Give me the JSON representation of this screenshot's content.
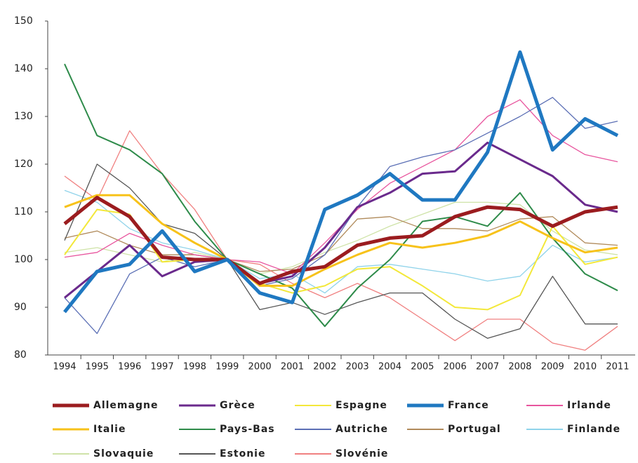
{
  "chart_data": {
    "type": "line",
    "categories": [
      "1994",
      "1995",
      "1996",
      "1997",
      "1998",
      "1999",
      "2000",
      "2001",
      "2002",
      "2003",
      "2004",
      "2005",
      "2006",
      "2007",
      "2008",
      "2009",
      "2010",
      "2011"
    ],
    "ylim": [
      80,
      150
    ],
    "yticks": [
      80,
      90,
      100,
      110,
      120,
      130,
      140,
      150
    ],
    "series": [
      {
        "name": "Allemagne",
        "color": "#9b1c1f",
        "values": [
          107.5,
          113,
          109,
          100.5,
          100,
          100,
          95,
          97.5,
          98.5,
          103,
          104.5,
          105,
          109,
          111,
          110.5,
          107,
          110,
          111
        ]
      },
      {
        "name": "Grèce",
        "color": "#6a2a8c",
        "values": [
          92,
          97.5,
          103,
          96.5,
          99.5,
          100,
          95,
          96.5,
          102.5,
          111,
          114,
          118,
          118.5,
          124.5,
          121,
          117.5,
          111.5,
          110
        ]
      },
      {
        "name": "Espagne",
        "color": "#f3e83a",
        "values": [
          101,
          110.5,
          109.5,
          99.5,
          100,
          100,
          95,
          93,
          94.5,
          98,
          98.5,
          94.5,
          90,
          89.5,
          92.5,
          107,
          99,
          100.5
        ]
      },
      {
        "name": "France",
        "color": "#1f78c1",
        "values": [
          89,
          97.5,
          99,
          106,
          97.5,
          100,
          93,
          91,
          110.5,
          113.5,
          118,
          112.5,
          112.5,
          122.5,
          143.5,
          123,
          129.5,
          126
        ]
      },
      {
        "name": "Irlande",
        "color": "#e8559e",
        "values": [
          100.5,
          101.5,
          105.5,
          103,
          101,
          100,
          99.5,
          97,
          103.5,
          110.5,
          116,
          119.5,
          123,
          130,
          133.5,
          126,
          122,
          120.5
        ]
      },
      {
        "name": "Italie",
        "color": "#f7c21a",
        "values": [
          111,
          113.5,
          113.5,
          107.5,
          103.5,
          100,
          94.5,
          94.5,
          98,
          101,
          103.5,
          102.5,
          103.5,
          105,
          108,
          104.5,
          101.5,
          102.5
        ]
      },
      {
        "name": "Pays-Bas",
        "color": "#2e8b4a",
        "values": [
          141,
          126,
          123,
          118,
          108,
          100,
          97,
          94,
          86,
          94,
          100,
          108,
          109,
          107,
          114,
          104.5,
          97,
          93.5
        ]
      },
      {
        "name": "Autriche",
        "color": "#5b6fb5",
        "values": [
          92,
          84.5,
          97,
          100.5,
          98.5,
          100,
          94.5,
          96,
          101,
          111,
          119.5,
          121.5,
          123,
          126.5,
          130,
          134,
          127.5,
          129
        ]
      },
      {
        "name": "Portugal",
        "color": "#b08a5a",
        "values": [
          104.5,
          106,
          103,
          101,
          101,
          100,
          97.5,
          98,
          101,
          108.5,
          109,
          106.5,
          106.5,
          106,
          108.5,
          109,
          103.5,
          103
        ]
      },
      {
        "name": "Finlande",
        "color": "#8fd3ea",
        "values": [
          114.5,
          112,
          106.5,
          103.5,
          102,
          100,
          96,
          97,
          93,
          98.5,
          99,
          98,
          97,
          95.5,
          96.5,
          103,
          99.5,
          100.5
        ]
      },
      {
        "name": "Slovaquie",
        "color": "#cfe3a8",
        "values": [
          101.5,
          102.5,
          101,
          99.5,
          101.5,
          100,
          97,
          98.5,
          101.5,
          104,
          107,
          109.5,
          112,
          112,
          111.5,
          106,
          102,
          101
        ]
      },
      {
        "name": "Estonie",
        "color": "#555555",
        "values": [
          104,
          120,
          115,
          107.5,
          105.5,
          100,
          89.5,
          91,
          88.5,
          91,
          93,
          93,
          87.5,
          83.5,
          85.5,
          96.5,
          86.5,
          86.5
        ]
      },
      {
        "name": "Slovénie",
        "color": "#f08080",
        "values": [
          117.5,
          112.5,
          127,
          118,
          110.5,
          100,
          99,
          95,
          92,
          95,
          92,
          87.5,
          83,
          87.5,
          87.5,
          82.5,
          81,
          86
        ]
      }
    ]
  }
}
